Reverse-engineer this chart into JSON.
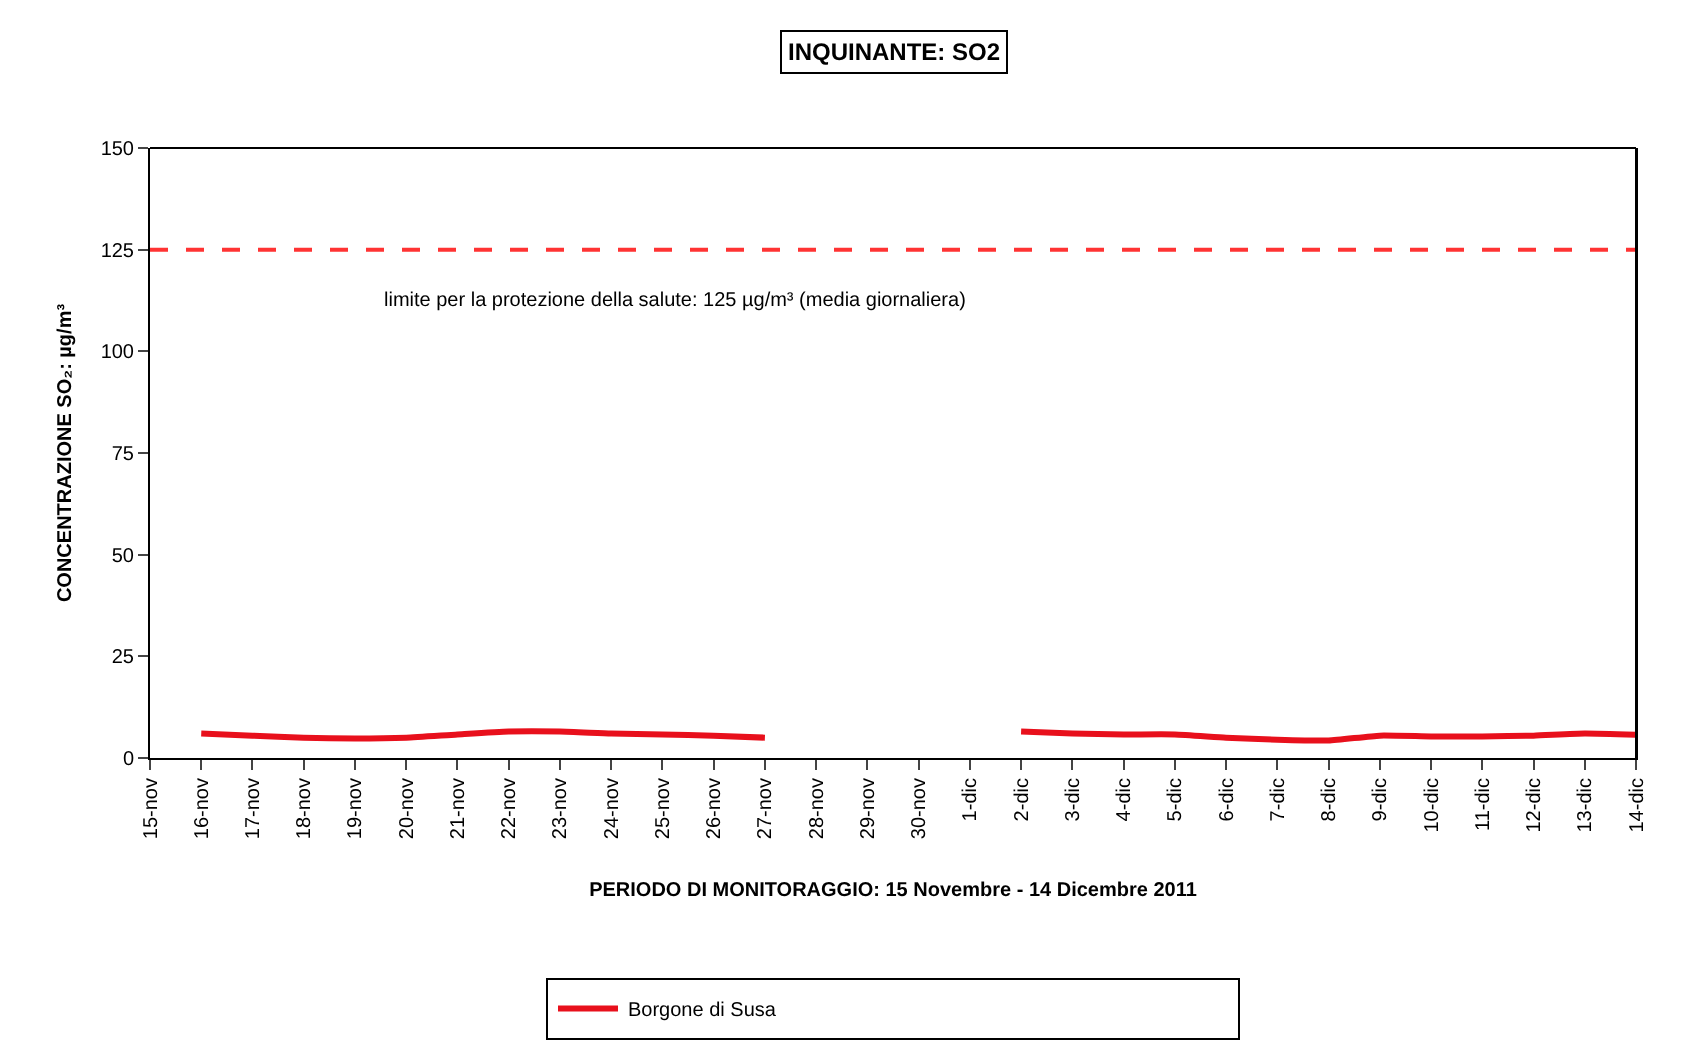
{
  "chart_data": {
    "type": "line",
    "title": "INQUINANTE: SO2",
    "xlabel": "PERIODO DI MONITORAGGIO: 15 Novembre - 14 Dicembre 2011",
    "ylabel": "CONCENTRAZIONE SO₂: µg/m³",
    "categories": [
      "15-nov",
      "16-nov",
      "17-nov",
      "18-nov",
      "19-nov",
      "20-nov",
      "21-nov",
      "22-nov",
      "23-nov",
      "24-nov",
      "25-nov",
      "26-nov",
      "27-nov",
      "28-nov",
      "29-nov",
      "30-nov",
      "1-dic",
      "2-dic",
      "3-dic",
      "4-dic",
      "5-dic",
      "6-dic",
      "7-dic",
      "8-dic",
      "9-dic",
      "10-dic",
      "11-dic",
      "12-dic",
      "13-dic",
      "14-dic"
    ],
    "series": [
      {
        "name": "Borgone di Susa",
        "color": "#e8101c",
        "values": [
          null,
          6,
          5.5,
          5,
          4.8,
          5,
          5.8,
          6.5,
          6.5,
          6,
          5.8,
          5.5,
          5,
          null,
          null,
          null,
          null,
          6.5,
          6,
          5.8,
          5.8,
          5,
          4.5,
          4.3,
          5.5,
          5.3,
          5.3,
          5.5,
          6,
          5.7
        ]
      }
    ],
    "ref_lines": [
      {
        "axis": "y",
        "value": 125,
        "label": "limite per la protezione della salute: 125 µg/m³ (media giornaliera)",
        "color": "#ff3333",
        "line_style": "dashed"
      }
    ],
    "ylim": [
      0,
      150
    ],
    "yticks": [
      0,
      25,
      50,
      75,
      100,
      125,
      150
    ],
    "legend": "bottom",
    "marker": "none",
    "line_style": "solid"
  }
}
